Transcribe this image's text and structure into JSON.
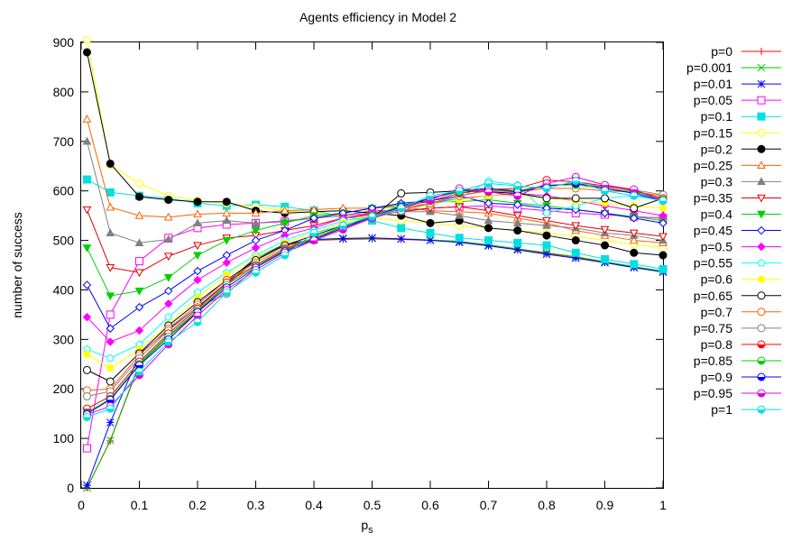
{
  "chart_data": {
    "type": "line",
    "title": "Agents efficiency in Model 2",
    "xlabel_main": "p",
    "xlabel_sub": "s",
    "ylabel": "number of success",
    "xlim": [
      0,
      1
    ],
    "ylim": [
      0,
      900
    ],
    "xticks": [
      "0",
      "0.1",
      "0.2",
      "0.3",
      "0.4",
      "0.5",
      "0.6",
      "0.7",
      "0.8",
      "0.9",
      "1"
    ],
    "yticks": [
      "0",
      "100",
      "200",
      "300",
      "400",
      "500",
      "600",
      "700",
      "800",
      "900"
    ],
    "grid": false,
    "legend_position": "right",
    "x": [
      0.01,
      0.05,
      0.1,
      0.15,
      0.2,
      0.25,
      0.3,
      0.35,
      0.4,
      0.45,
      0.5,
      0.55,
      0.6,
      0.65,
      0.7,
      0.75,
      0.8,
      0.85,
      0.9,
      0.95,
      1
    ],
    "series": [
      {
        "name": "p=0",
        "color": "#ff0000",
        "marker": "plus",
        "values": [
          0,
          95,
          250,
          305,
          355,
          410,
          460,
          490,
          500,
          502,
          503,
          502,
          500,
          497,
          490,
          482,
          474,
          466,
          456,
          446,
          437
        ]
      },
      {
        "name": "p=0.001",
        "color": "#00c000",
        "marker": "x",
        "values": [
          0,
          96,
          252,
          308,
          358,
          412,
          462,
          491,
          501,
          503,
          504,
          503,
          501,
          498,
          491,
          483,
          475,
          467,
          457,
          447,
          438
        ]
      },
      {
        "name": "p=0.01",
        "color": "#0000ff",
        "marker": "star",
        "values": [
          5,
          132,
          270,
          320,
          365,
          415,
          465,
          492,
          502,
          504,
          505,
          503,
          500,
          496,
          489,
          481,
          472,
          464,
          455,
          445,
          436
        ]
      },
      {
        "name": "p=0.05",
        "color": "#ff00ff",
        "marker": "square-open",
        "values": [
          80,
          350,
          458,
          505,
          525,
          532,
          535,
          538,
          545,
          550,
          560,
          560,
          565,
          568,
          570,
          565,
          560,
          555,
          552,
          548,
          545
        ]
      },
      {
        "name": "p=0.1",
        "color": "#00e0e0",
        "marker": "square-filled",
        "values": [
          623,
          597,
          590,
          585,
          575,
          570,
          572,
          568,
          560,
          548,
          540,
          525,
          515,
          505,
          500,
          495,
          490,
          475,
          462,
          452,
          442
        ]
      },
      {
        "name": "p=0.15",
        "color": "#ffff00",
        "marker": "circle-open",
        "values": [
          905,
          652,
          615,
          590,
          580,
          575,
          568,
          560,
          555,
          550,
          545,
          540,
          535,
          530,
          525,
          520,
          515,
          508,
          500,
          492,
          485
        ]
      },
      {
        "name": "p=0.2",
        "color": "#000000",
        "marker": "circle-filled",
        "values": [
          880,
          655,
          588,
          582,
          578,
          578,
          560,
          555,
          558,
          560,
          555,
          550,
          535,
          540,
          525,
          520,
          510,
          500,
          490,
          475,
          470
        ]
      },
      {
        "name": "p=0.25",
        "color": "#ff6000",
        "marker": "triangle-open",
        "values": [
          745,
          567,
          550,
          547,
          553,
          555,
          555,
          560,
          562,
          565,
          565,
          568,
          560,
          558,
          555,
          545,
          535,
          520,
          510,
          500,
          495
        ]
      },
      {
        "name": "p=0.3",
        "color": "#808080",
        "marker": "triangle-filled",
        "values": [
          700,
          515,
          495,
          502,
          535,
          540,
          535,
          540,
          545,
          550,
          555,
          558,
          558,
          550,
          540,
          535,
          530,
          525,
          515,
          510,
          500
        ]
      },
      {
        "name": "p=0.35",
        "color": "#e00000",
        "marker": "triangle-down-open",
        "values": [
          562,
          445,
          435,
          468,
          490,
          505,
          510,
          520,
          530,
          545,
          552,
          558,
          565,
          568,
          560,
          550,
          540,
          530,
          522,
          515,
          508
        ]
      },
      {
        "name": "p=0.4",
        "color": "#00d000",
        "marker": "triangle-down-filled",
        "values": [
          485,
          388,
          398,
          425,
          470,
          500,
          520,
          535,
          550,
          555,
          565,
          572,
          578,
          578,
          582,
          575,
          570,
          562,
          555,
          548,
          540
        ]
      },
      {
        "name": "p=0.45",
        "color": "#0000ff",
        "marker": "diamond-open",
        "values": [
          410,
          322,
          365,
          398,
          438,
          470,
          500,
          520,
          545,
          555,
          565,
          575,
          580,
          590,
          575,
          572,
          565,
          562,
          555,
          545,
          535
        ]
      },
      {
        "name": "p=0.5",
        "color": "#ff00ff",
        "marker": "diamond-filled",
        "values": [
          345,
          295,
          318,
          372,
          420,
          455,
          485,
          510,
          525,
          545,
          555,
          565,
          575,
          585,
          590,
          595,
          590,
          580,
          570,
          560,
          550
        ]
      },
      {
        "name": "p=0.55",
        "color": "#00ffff",
        "marker": "pentagon-open",
        "values": [
          280,
          262,
          290,
          345,
          395,
          435,
          470,
          500,
          520,
          540,
          548,
          560,
          572,
          585,
          620,
          612,
          555,
          570,
          585,
          590,
          585
        ]
      },
      {
        "name": "p=0.6",
        "color": "#ffff00",
        "marker": "pentagon-filled",
        "values": [
          270,
          242,
          280,
          330,
          385,
          430,
          465,
          495,
          515,
          535,
          548,
          560,
          572,
          582,
          590,
          592,
          585,
          580,
          575,
          570,
          565
        ]
      },
      {
        "name": "p=0.65",
        "color": "#000000",
        "marker": "circle-open",
        "values": [
          238,
          215,
          272,
          328,
          375,
          420,
          460,
          490,
          510,
          530,
          545,
          595,
          597,
          600,
          598,
          595,
          585,
          585,
          585,
          565,
          585
        ]
      },
      {
        "name": "p=0.7",
        "color": "#ff6000",
        "marker": "circle-open",
        "values": [
          197,
          200,
          268,
          322,
          370,
          420,
          455,
          485,
          505,
          525,
          545,
          565,
          575,
          590,
          600,
          598,
          605,
          605,
          600,
          598,
          590
        ]
      },
      {
        "name": "p=0.75",
        "color": "#808080",
        "marker": "circle-open",
        "values": [
          185,
          195,
          262,
          318,
          365,
          392,
          445,
          480,
          505,
          525,
          545,
          560,
          575,
          590,
          602,
          598,
          610,
          615,
          608,
          602,
          592
        ]
      },
      {
        "name": "p=0.8",
        "color": "#ff0000",
        "marker": "circle-half",
        "values": [
          160,
          185,
          255,
          312,
          362,
          415,
          450,
          482,
          505,
          528,
          550,
          568,
          580,
          595,
          603,
          605,
          622,
          618,
          610,
          600,
          585
        ]
      },
      {
        "name": "p=0.85",
        "color": "#00d000",
        "marker": "circle-half",
        "values": [
          152,
          180,
          250,
          305,
          358,
          410,
          448,
          480,
          505,
          528,
          550,
          570,
          585,
          598,
          605,
          600,
          612,
          612,
          605,
          598,
          582
        ]
      },
      {
        "name": "p=0.9",
        "color": "#0000ff",
        "marker": "circle-half",
        "values": [
          150,
          178,
          248,
          300,
          355,
          405,
          445,
          478,
          502,
          525,
          548,
          568,
          585,
          600,
          605,
          598,
          610,
          615,
          605,
          595,
          580
        ]
      },
      {
        "name": "p=0.95",
        "color": "#e000e0",
        "marker": "circle-half",
        "values": [
          148,
          165,
          228,
          290,
          348,
          400,
          440,
          475,
          500,
          522,
          545,
          565,
          582,
          605,
          598,
          590,
          615,
          628,
          612,
          603,
          580
        ]
      },
      {
        "name": "p=1",
        "color": "#00e0e0",
        "marker": "circle-half",
        "values": [
          143,
          160,
          235,
          295,
          335,
          395,
          435,
          470,
          515,
          530,
          548,
          565,
          590,
          600,
          615,
          610,
          605,
          620,
          600,
          590,
          580
        ]
      }
    ]
  }
}
